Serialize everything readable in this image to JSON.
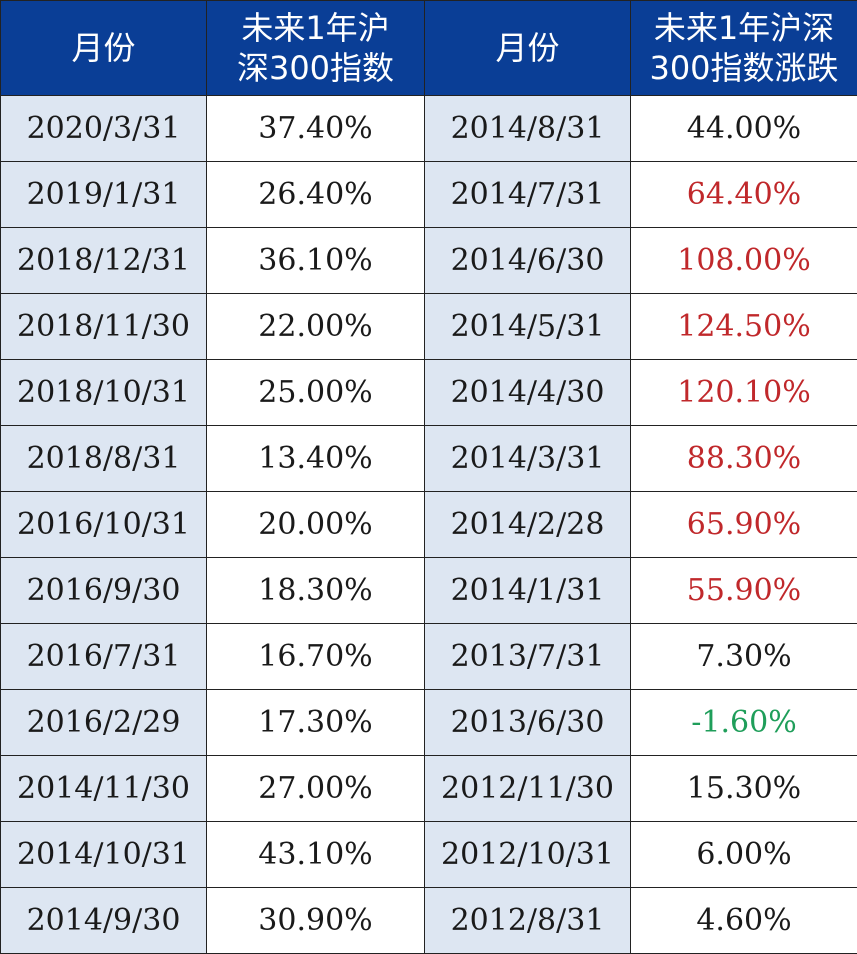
{
  "headers": {
    "col1": "月份",
    "col2_line1": "未来1年沪",
    "col2_line2": "深300指数",
    "col3": "月份",
    "col4_line1": "未来1年沪深",
    "col4_line2": "300指数涨跌"
  },
  "colors": {
    "header_bg": "#0a3e96",
    "header_text": "#ffffff",
    "month_cell_bg": "#dde6f2",
    "highlight_red": "#c0282b",
    "highlight_green": "#1f9e5a",
    "default_text": "#1a1a1a"
  },
  "rows": [
    {
      "month1": "2020/3/31",
      "value1": "37.40%",
      "month2": "2014/8/31",
      "value2": "44.00%",
      "value2_style": "normal"
    },
    {
      "month1": "2019/1/31",
      "value1": "26.40%",
      "month2": "2014/7/31",
      "value2": "64.40%",
      "value2_style": "up"
    },
    {
      "month1": "2018/12/31",
      "value1": "36.10%",
      "month2": "2014/6/30",
      "value2": "108.00%",
      "value2_style": "up"
    },
    {
      "month1": "2018/11/30",
      "value1": "22.00%",
      "month2": "2014/5/31",
      "value2": "124.50%",
      "value2_style": "up"
    },
    {
      "month1": "2018/10/31",
      "value1": "25.00%",
      "month2": "2014/4/30",
      "value2": "120.10%",
      "value2_style": "up"
    },
    {
      "month1": "2018/8/31",
      "value1": "13.40%",
      "month2": "2014/3/31",
      "value2": "88.30%",
      "value2_style": "up"
    },
    {
      "month1": "2016/10/31",
      "value1": "20.00%",
      "month2": "2014/2/28",
      "value2": "65.90%",
      "value2_style": "up"
    },
    {
      "month1": "2016/9/30",
      "value1": "18.30%",
      "month2": "2014/1/31",
      "value2": "55.90%",
      "value2_style": "up"
    },
    {
      "month1": "2016/7/31",
      "value1": "16.70%",
      "month2": "2013/7/31",
      "value2": "7.30%",
      "value2_style": "normal"
    },
    {
      "month1": "2016/2/29",
      "value1": "17.30%",
      "month2": "2013/6/30",
      "value2": "-1.60%",
      "value2_style": "down"
    },
    {
      "month1": "2014/11/30",
      "value1": "27.00%",
      "month2": "2012/11/30",
      "value2": "15.30%",
      "value2_style": "normal"
    },
    {
      "month1": "2014/10/31",
      "value1": "43.10%",
      "month2": "2012/10/31",
      "value2": "6.00%",
      "value2_style": "normal"
    },
    {
      "month1": "2014/9/30",
      "value1": "30.90%",
      "month2": "2012/8/31",
      "value2": "4.60%",
      "value2_style": "normal"
    }
  ]
}
